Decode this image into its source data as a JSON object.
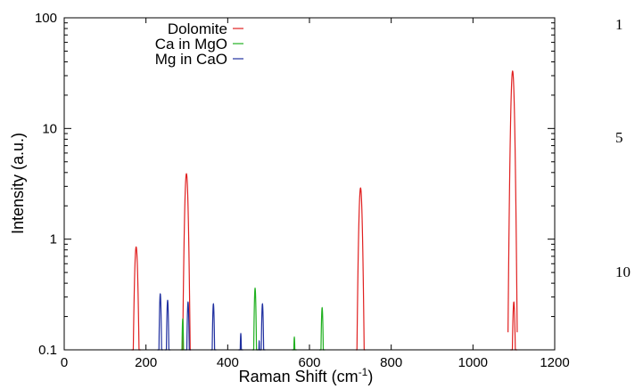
{
  "chart_data": {
    "type": "line",
    "xlabel": "Raman Shift (cm",
    "xlabel_sup": "-1",
    "xlabel_close": ")",
    "ylabel": "Intensity (a.u.)",
    "xlim": [
      0,
      1200
    ],
    "ylim": [
      0.1,
      100
    ],
    "yscale": "log",
    "x_ticks": [
      0,
      200,
      400,
      600,
      800,
      1000,
      1200
    ],
    "y_ticks": [
      {
        "value": 0.1,
        "label": "0.1"
      },
      {
        "value": 1,
        "label": "1"
      },
      {
        "value": 10,
        "label": "10"
      },
      {
        "value": 100,
        "label": "100"
      }
    ],
    "grid": false,
    "legend_position": "top-left",
    "series": [
      {
        "name": "Dolomite",
        "color": "#e02020",
        "peaks": [
          {
            "x": 176,
            "y": 0.85,
            "width": 8
          },
          {
            "x": 299,
            "y": 3.9,
            "width": 8
          },
          {
            "x": 725,
            "y": 2.9,
            "width": 8
          },
          {
            "x": 1097,
            "y": 33,
            "width": 8
          },
          {
            "x": 1100,
            "y": 0.27,
            "width": 6
          }
        ]
      },
      {
        "name": "Ca in MgO",
        "color": "#20b020",
        "peaks": [
          {
            "x": 290,
            "y": 0.19,
            "width": 4
          },
          {
            "x": 467,
            "y": 0.36,
            "width": 5
          },
          {
            "x": 563,
            "y": 0.13,
            "width": 4
          },
          {
            "x": 631,
            "y": 0.24,
            "width": 5
          }
        ]
      },
      {
        "name": "Mg in CaO",
        "color": "#2030a0",
        "peaks": [
          {
            "x": 235,
            "y": 0.32,
            "width": 5
          },
          {
            "x": 253,
            "y": 0.28,
            "width": 5
          },
          {
            "x": 303,
            "y": 0.27,
            "width": 5
          },
          {
            "x": 365,
            "y": 0.26,
            "width": 5
          },
          {
            "x": 432,
            "y": 0.14,
            "width": 4
          },
          {
            "x": 477,
            "y": 0.12,
            "width": 3
          },
          {
            "x": 485,
            "y": 0.26,
            "width": 5
          }
        ]
      }
    ]
  },
  "margin_numbers": [
    "1",
    "5",
    "10"
  ]
}
